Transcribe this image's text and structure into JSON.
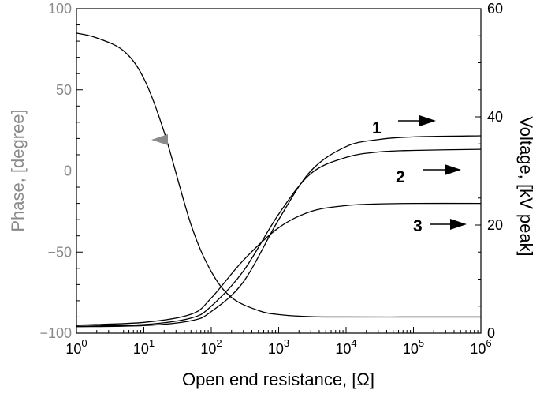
{
  "chart_data": {
    "type": "line",
    "xlabel": "Open end resistance, [Ω]",
    "ylabel_left": "Phase, [degree]",
    "ylabel_right": "Voltage, [kV peak]",
    "x_scale": "log",
    "xlim": [
      1,
      1000000
    ],
    "ylim_left": [
      -100,
      100
    ],
    "ylim_right": [
      0,
      60
    ],
    "x_ticks": [
      {
        "base": "10",
        "exp": "0",
        "value": 1
      },
      {
        "base": "10",
        "exp": "1",
        "value": 10
      },
      {
        "base": "10",
        "exp": "2",
        "value": 100
      },
      {
        "base": "10",
        "exp": "3",
        "value": 1000
      },
      {
        "base": "10",
        "exp": "4",
        "value": 10000
      },
      {
        "base": "10",
        "exp": "5",
        "value": 100000
      },
      {
        "base": "10",
        "exp": "6",
        "value": 1000000
      }
    ],
    "y_left_ticks": [
      "100",
      "50",
      "0",
      "−50",
      "−100"
    ],
    "y_right_ticks": [
      "60",
      "40",
      "20",
      "0"
    ],
    "colors": {
      "phase_axis": "#8a8a8a",
      "arrow_left": "#8a8a8a",
      "curves": "#000000"
    },
    "series": [
      {
        "axis": "left",
        "x": [
          1,
          2,
          5,
          10,
          20,
          50,
          100,
          200,
          500,
          1000,
          3000,
          10000,
          100000,
          1000000
        ],
        "y": [
          85,
          82,
          74,
          57,
          24,
          -33,
          -62,
          -78,
          -86,
          -88.5,
          -89.8,
          -90,
          -90,
          -90
        ]
      },
      {
        "axis": "right",
        "label": "1",
        "x": [
          1,
          10,
          50,
          100,
          300,
          1000,
          3000,
          10000,
          30000,
          100000,
          1000000
        ],
        "y": [
          1.2,
          1.4,
          2.3,
          4.0,
          9.5,
          21,
          30,
          34.5,
          35.8,
          36.3,
          36.5
        ]
      },
      {
        "axis": "right",
        "label": "2",
        "x": [
          1,
          10,
          50,
          100,
          300,
          1000,
          3000,
          10000,
          30000,
          100000,
          1000000
        ],
        "y": [
          1.3,
          1.6,
          2.8,
          5.0,
          11.5,
          22,
          29.5,
          32.5,
          33.5,
          33.8,
          34.0
        ]
      },
      {
        "axis": "right",
        "label": "3",
        "x": [
          1,
          10,
          50,
          100,
          300,
          1000,
          3000,
          10000,
          30000,
          100000,
          1000000
        ],
        "y": [
          1.5,
          2.0,
          3.5,
          6.5,
          13.5,
          19.5,
          22.5,
          23.6,
          23.9,
          24.0,
          24.0
        ]
      }
    ],
    "grid": false
  }
}
